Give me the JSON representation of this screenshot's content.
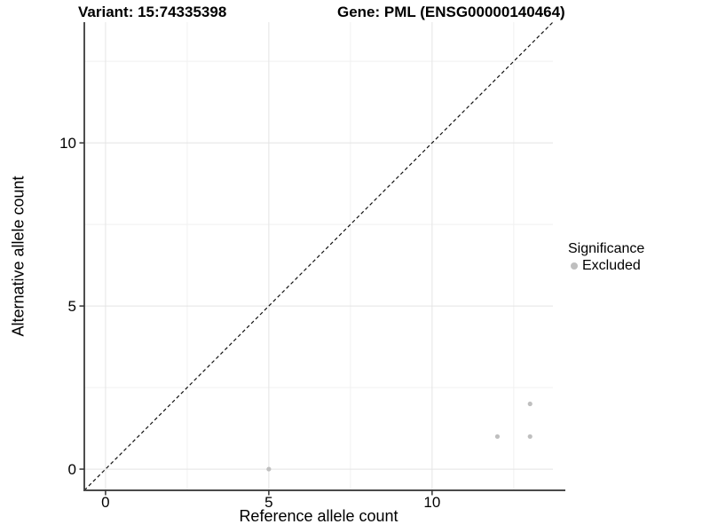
{
  "titles": {
    "left": "Variant: 15:74335398",
    "right": "Gene: PML (ENSG00000140464)"
  },
  "chart_data": {
    "type": "scatter",
    "xlabel": "Reference allele count",
    "ylabel": "Alternative allele count",
    "xlim": [
      -0.65,
      13.7
    ],
    "ylim": [
      -0.65,
      13.7
    ],
    "x_ticks": [
      0,
      5,
      10
    ],
    "y_ticks": [
      0,
      5,
      10
    ],
    "x_minor_ticks": [
      2.5,
      7.5,
      12.5
    ],
    "y_minor_ticks": [
      2.5,
      7.5,
      12.5
    ],
    "grid": true,
    "legend": {
      "title": "Significance",
      "position": "right",
      "items": [
        {
          "label": "Excluded",
          "color": "#bfbfbf"
        }
      ]
    },
    "series": [
      {
        "name": "Excluded",
        "color": "#bfbfbf",
        "marker_radius": 2.6,
        "points": [
          [
            5,
            0
          ],
          [
            12,
            1
          ],
          [
            13,
            1
          ],
          [
            13,
            2
          ]
        ]
      }
    ],
    "reference_line": {
      "kind": "identity",
      "style": "dashed",
      "color": "#111111"
    }
  },
  "colors": {
    "background": "#ffffff",
    "grid_major": "#e4e4e4",
    "grid_minor": "#f1f1f1",
    "axis_line": "#4a4a4a",
    "tick_mark": "#333333",
    "tick_label": "#000000",
    "point": "#bfbfbf"
  }
}
